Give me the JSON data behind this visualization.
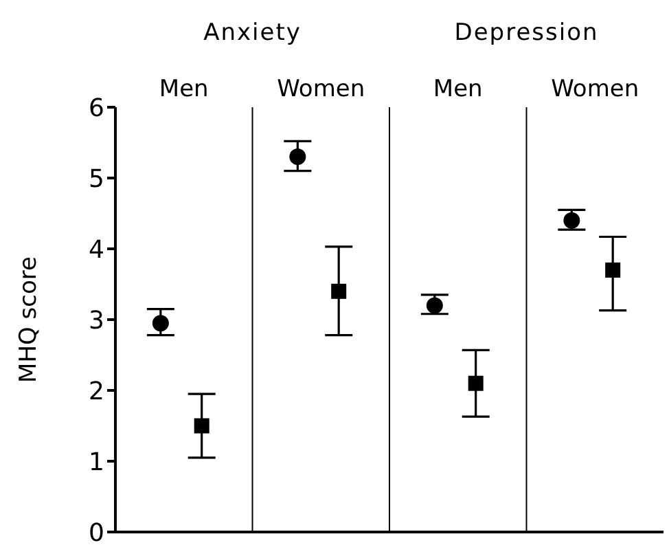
{
  "chart_data": {
    "type": "scatter",
    "ylabel": "MHQ score",
    "categories": [
      "Men",
      "Women",
      "Men",
      "Women"
    ],
    "annotations": [
      "Anxiety",
      "Depression"
    ],
    "series": [
      {
        "color": "#000000",
        "marker": "circle",
        "values": [
          2.95,
          5.3,
          3.2,
          4.4
        ],
        "errors": [
          [
            2.78,
            3.15
          ],
          [
            5.1,
            5.52
          ],
          [
            3.08,
            3.35
          ],
          [
            4.27,
            4.55
          ]
        ]
      },
      {
        "color": "#000000",
        "marker": "square",
        "values": [
          1.5,
          3.4,
          2.1,
          3.7
        ],
        "errors": [
          [
            1.05,
            1.95
          ],
          [
            2.78,
            4.03
          ],
          [
            1.63,
            2.57
          ],
          [
            3.13,
            4.17
          ]
        ]
      }
    ],
    "ylim": [
      0,
      6
    ],
    "yticks": [
      0,
      1,
      2,
      3,
      4,
      5,
      6
    ],
    "grid": "x"
  }
}
